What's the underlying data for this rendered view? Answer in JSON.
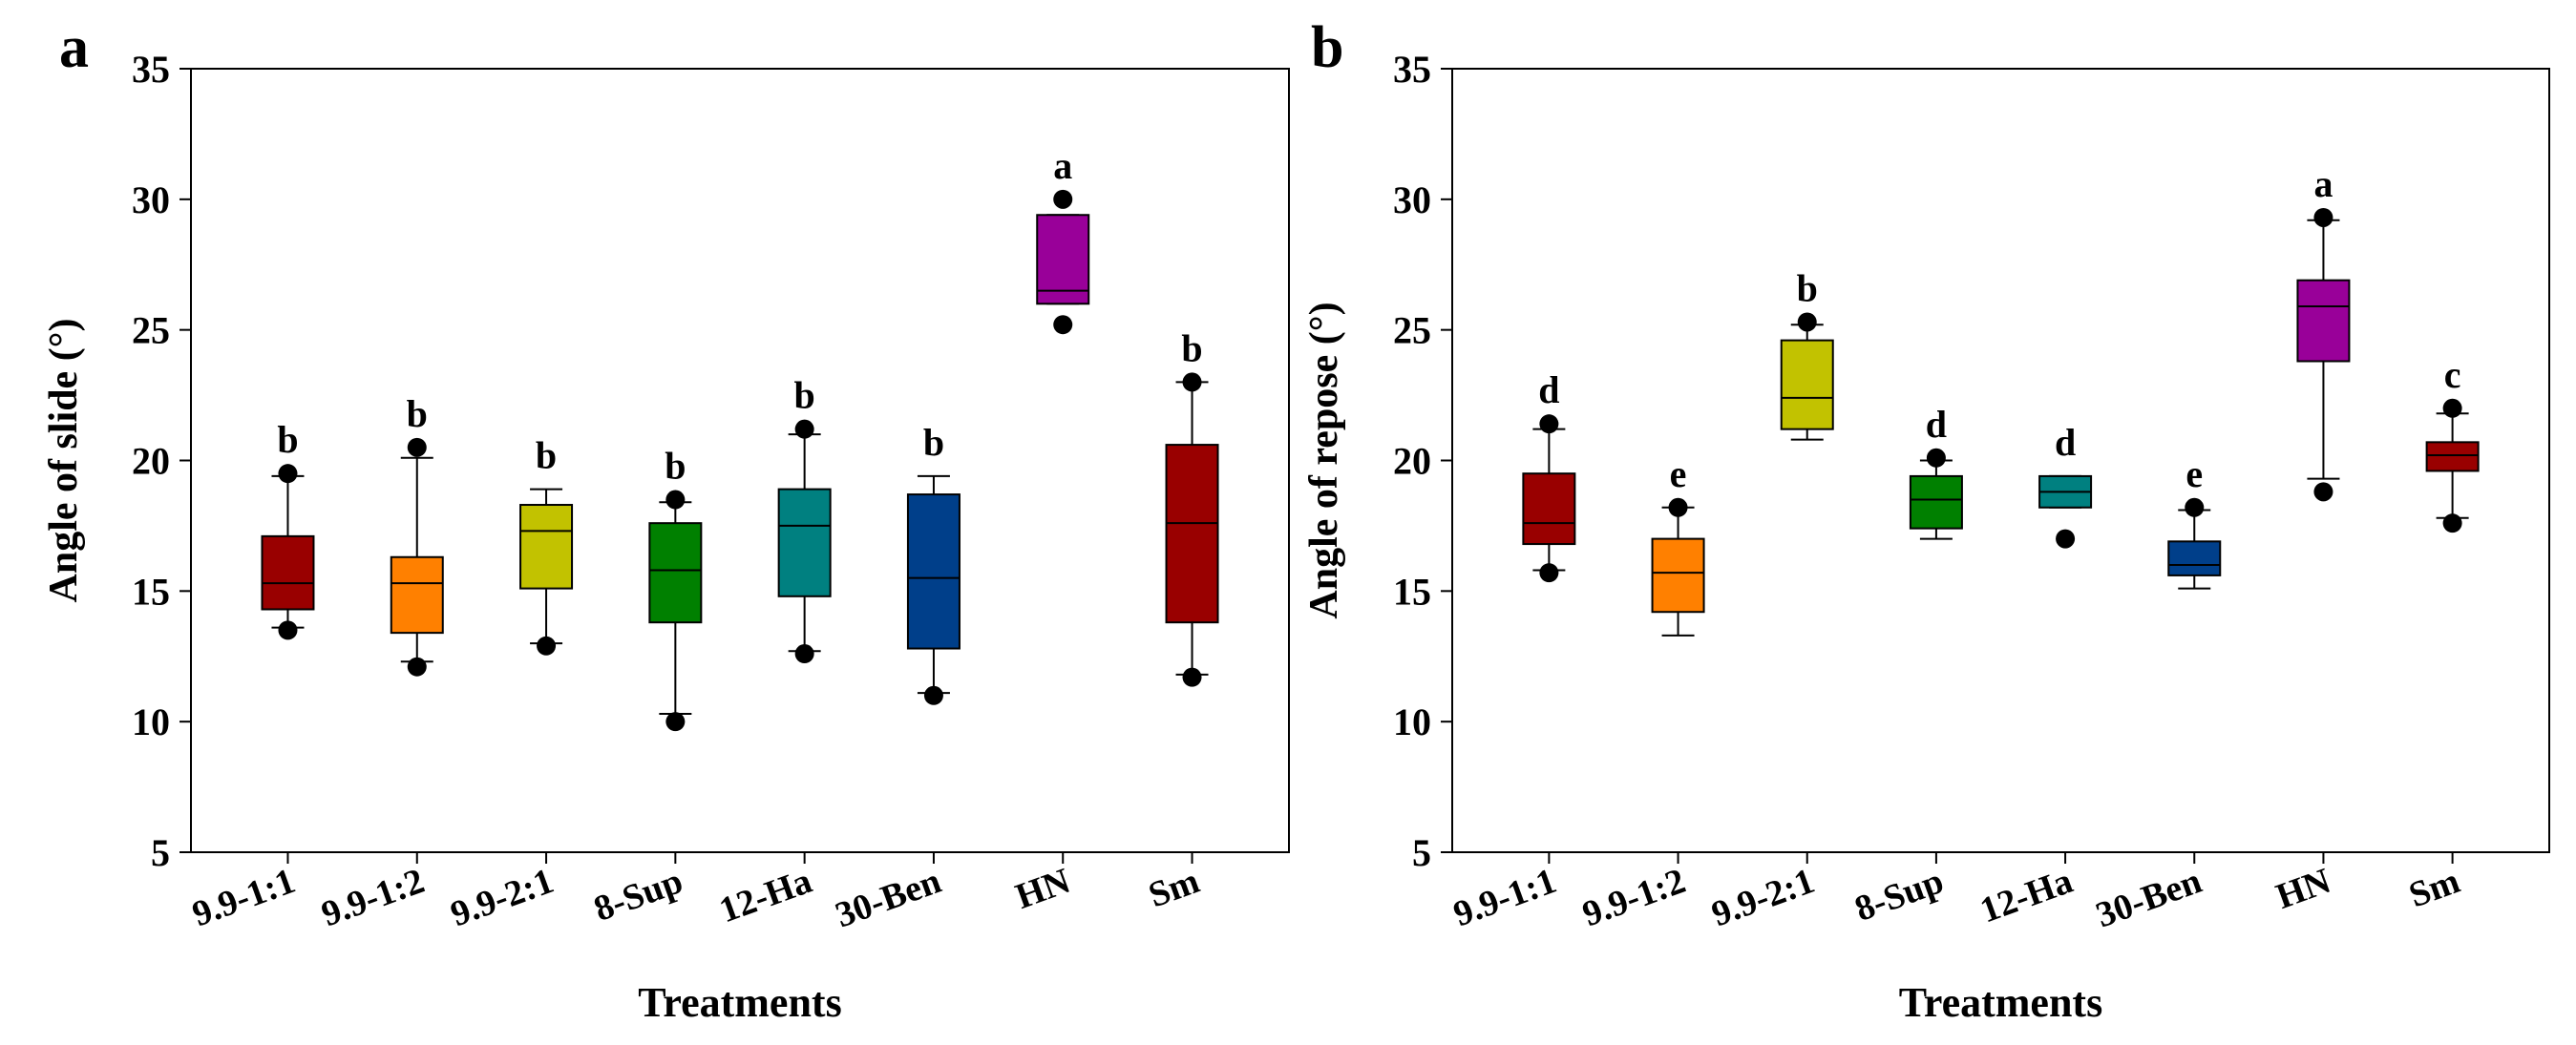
{
  "chart_data": [
    {
      "type": "box",
      "panel_label": "a",
      "xlabel": "Treatments",
      "ylabel": "Angle of slide (°)",
      "ylim": [
        5,
        35
      ],
      "yticks": [
        "5",
        "10",
        "15",
        "20",
        "25",
        "30",
        "35"
      ],
      "grid": false,
      "categories": [
        "9.9-1:1",
        "9.9-1:2",
        "9.9-2:1",
        "8-Sup",
        "12-Ha",
        "30-Ben",
        "HN",
        "Sm"
      ],
      "boxes": [
        {
          "category": "9.9-1:1",
          "whisker_low": 13.6,
          "q1": 14.3,
          "median": 15.3,
          "q3": 17.1,
          "whisker_high": 19.4,
          "outliers": [
            13.5,
            19.5
          ],
          "letter": "b",
          "color": "#990000"
        },
        {
          "category": "9.9-1:2",
          "whisker_low": 12.3,
          "q1": 13.4,
          "median": 15.3,
          "q3": 16.3,
          "whisker_high": 20.1,
          "outliers": [
            12.1,
            20.5
          ],
          "letter": "b",
          "color": "#ff8000"
        },
        {
          "category": "9.9-2:1",
          "whisker_low": 13.0,
          "q1": 15.1,
          "median": 17.3,
          "q3": 18.3,
          "whisker_high": 18.9,
          "outliers": [
            12.9
          ],
          "letter": "b",
          "color": "#c2c200"
        },
        {
          "category": "8-Sup",
          "whisker_low": 10.3,
          "q1": 13.8,
          "median": 15.8,
          "q3": 17.6,
          "whisker_high": 18.4,
          "outliers": [
            10.0,
            18.5
          ],
          "letter": "b",
          "color": "#008000"
        },
        {
          "category": "12-Ha",
          "whisker_low": 12.7,
          "q1": 14.8,
          "median": 17.5,
          "q3": 18.9,
          "whisker_high": 21.0,
          "outliers": [
            12.6,
            21.2
          ],
          "letter": "b",
          "color": "#008080"
        },
        {
          "category": "30-Ben",
          "whisker_low": 11.1,
          "q1": 12.8,
          "median": 15.5,
          "q3": 18.7,
          "whisker_high": 19.4,
          "outliers": [
            11.0
          ],
          "letter": "b",
          "color": "#003f8a"
        },
        {
          "category": "HN",
          "whisker_low": 26.0,
          "q1": 26.0,
          "median": 26.5,
          "q3": 29.4,
          "whisker_high": 29.4,
          "outliers": [
            25.2,
            30.0
          ],
          "letter": "a",
          "color": "#990099"
        },
        {
          "category": "Sm",
          "whisker_low": 11.8,
          "q1": 13.8,
          "median": 17.6,
          "q3": 20.6,
          "whisker_high": 23.0,
          "outliers": [
            11.7,
            23.0
          ],
          "letter": "b",
          "color": "#990000"
        }
      ]
    },
    {
      "type": "box",
      "panel_label": "b",
      "xlabel": "Treatments",
      "ylabel": "Angle of repose (°)",
      "ylim": [
        5,
        35
      ],
      "yticks": [
        "5",
        "10",
        "15",
        "20",
        "25",
        "30",
        "35"
      ],
      "grid": false,
      "categories": [
        "9.9-1:1",
        "9.9-1:2",
        "9.9-2:1",
        "8-Sup",
        "12-Ha",
        "30-Ben",
        "HN",
        "Sm"
      ],
      "boxes": [
        {
          "category": "9.9-1:1",
          "whisker_low": 15.8,
          "q1": 16.8,
          "median": 17.6,
          "q3": 19.5,
          "whisker_high": 21.2,
          "outliers": [
            15.7,
            21.4
          ],
          "letter": "d",
          "color": "#990000"
        },
        {
          "category": "9.9-1:2",
          "whisker_low": 13.3,
          "q1": 14.2,
          "median": 15.7,
          "q3": 17.0,
          "whisker_high": 18.2,
          "outliers": [
            18.2
          ],
          "letter": "e",
          "color": "#ff8000"
        },
        {
          "category": "9.9-2:1",
          "whisker_low": 20.8,
          "q1": 21.2,
          "median": 22.4,
          "q3": 24.6,
          "whisker_high": 25.2,
          "outliers": [
            25.3
          ],
          "letter": "b",
          "color": "#c2c200"
        },
        {
          "category": "8-Sup",
          "whisker_low": 17.0,
          "q1": 17.4,
          "median": 18.5,
          "q3": 19.4,
          "whisker_high": 20.0,
          "outliers": [
            20.1
          ],
          "letter": "d",
          "color": "#008000"
        },
        {
          "category": "12-Ha",
          "whisker_low": 18.2,
          "q1": 18.2,
          "median": 18.8,
          "q3": 19.4,
          "whisker_high": 19.4,
          "outliers": [
            17.0
          ],
          "letter": "d",
          "color": "#008080"
        },
        {
          "category": "30-Ben",
          "whisker_low": 15.1,
          "q1": 15.6,
          "median": 16.0,
          "q3": 16.9,
          "whisker_high": 18.1,
          "outliers": [
            18.2
          ],
          "letter": "e",
          "color": "#003f8a"
        },
        {
          "category": "HN",
          "whisker_low": 19.3,
          "q1": 23.8,
          "median": 25.9,
          "q3": 26.9,
          "whisker_high": 29.2,
          "outliers": [
            18.8,
            29.3
          ],
          "letter": "a",
          "color": "#990099"
        },
        {
          "category": "Sm",
          "whisker_low": 17.8,
          "q1": 19.6,
          "median": 20.2,
          "q3": 20.7,
          "whisker_high": 21.8,
          "outliers": [
            17.6,
            22.0
          ],
          "letter": "c",
          "color": "#990000"
        }
      ]
    }
  ]
}
